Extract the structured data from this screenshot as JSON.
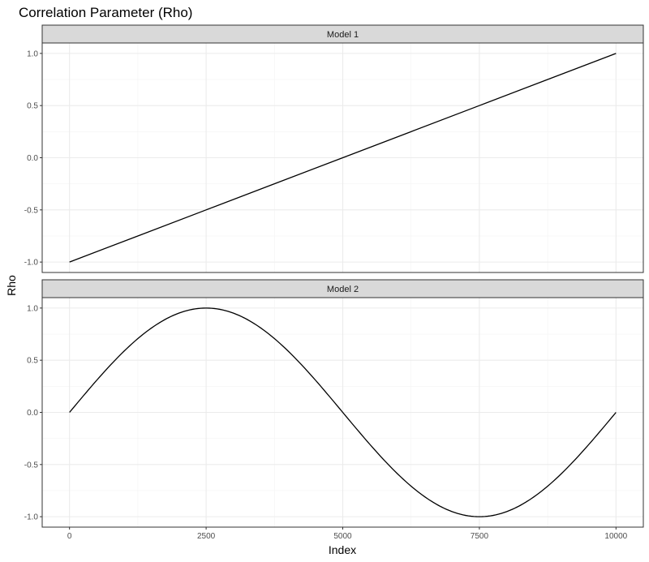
{
  "title": "Correlation Parameter (Rho)",
  "chart_data": {
    "type": "line",
    "title": "Correlation Parameter (Rho)",
    "xlabel": "Index",
    "ylabel": "Rho",
    "xlim": [
      0,
      10000
    ],
    "ylim": [
      -1.0,
      1.0
    ],
    "x_ticks": [
      0,
      2500,
      5000,
      7500,
      10000
    ],
    "x_tick_labels": [
      "0",
      "2500",
      "5000",
      "7500",
      "10000"
    ],
    "y_ticks": [
      1.0,
      0.5,
      0.0,
      -0.5,
      -1.0
    ],
    "y_tick_labels": [
      "1.0",
      "0.5",
      "0.0",
      "-0.5",
      "-1.0"
    ],
    "grid": true,
    "panels": [
      {
        "strip": "Model 1",
        "x": [
          0,
          1250,
          2500,
          3750,
          5000,
          6250,
          7500,
          8750,
          10000
        ],
        "y": [
          -1.0,
          -0.75,
          -0.5,
          -0.25,
          0.0,
          0.25,
          0.5,
          0.75,
          1.0
        ]
      },
      {
        "strip": "Model 2",
        "x": [
          0,
          500,
          1000,
          1500,
          2000,
          2500,
          3000,
          3500,
          4000,
          4500,
          5000,
          5500,
          6000,
          6500,
          7000,
          7500,
          8000,
          8500,
          9000,
          9500,
          10000
        ],
        "y": [
          0.0,
          0.309,
          0.588,
          0.809,
          0.951,
          1.0,
          0.951,
          0.809,
          0.588,
          0.309,
          0.0,
          -0.309,
          -0.588,
          -0.809,
          -0.951,
          -1.0,
          -0.951,
          -0.809,
          -0.588,
          -0.309,
          0.0
        ]
      }
    ]
  }
}
